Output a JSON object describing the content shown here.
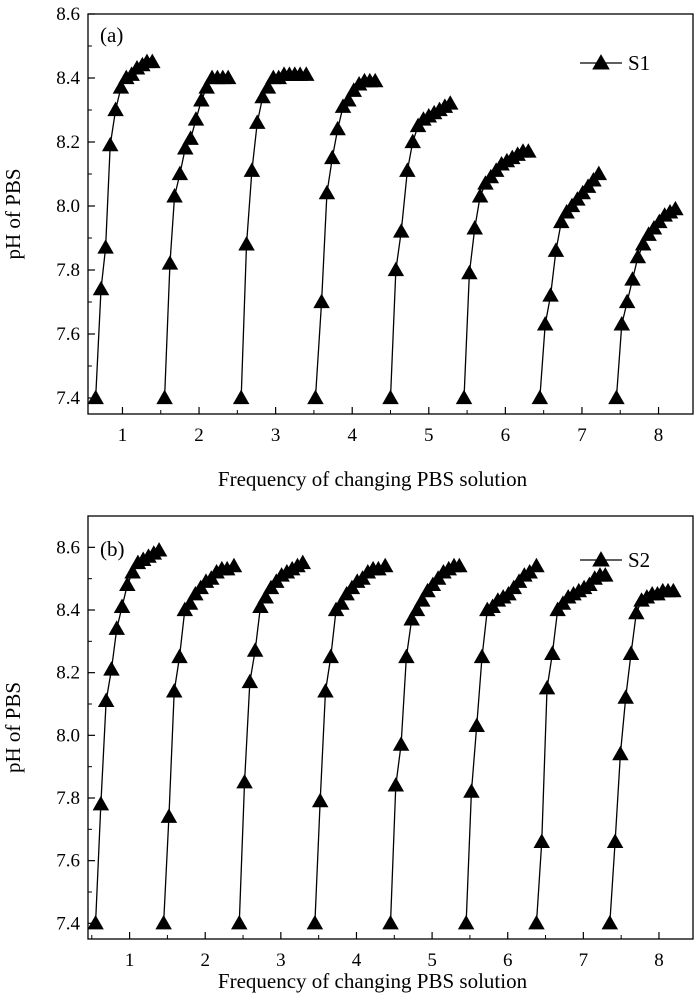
{
  "chart_data": [
    {
      "type": "line",
      "panel_label": "(a)",
      "xlabel": "Frequency of changing PBS solution",
      "ylabel": "pH of PBS",
      "xlim": [
        0.55,
        8.45
      ],
      "ylim": [
        7.35,
        8.6
      ],
      "xticks": [
        1,
        2,
        3,
        4,
        5,
        6,
        7,
        8
      ],
      "yticks": [
        "7.4",
        "7.6",
        "7.8",
        "8.0",
        "8.2",
        "8.4",
        "8.6"
      ],
      "legend": {
        "label": "S1",
        "position": "top-right",
        "marker": "triangle"
      },
      "grid": false,
      "series": [
        {
          "x": [
            0.65,
            0.72,
            0.78,
            0.84,
            0.91,
            0.98,
            1.05,
            1.12,
            1.19,
            1.26,
            1.32,
            1.39
          ],
          "y": [
            7.4,
            7.74,
            7.87,
            8.19,
            8.3,
            8.37,
            8.4,
            8.41,
            8.43,
            8.44,
            8.45,
            8.45
          ]
        },
        {
          "x": [
            1.55,
            1.62,
            1.68,
            1.75,
            1.82,
            1.89,
            1.96,
            2.03,
            2.1,
            2.17,
            2.24,
            2.31,
            2.38
          ],
          "y": [
            7.4,
            7.82,
            8.03,
            8.1,
            8.18,
            8.21,
            8.27,
            8.33,
            8.37,
            8.4,
            8.4,
            8.4,
            8.4
          ]
        },
        {
          "x": [
            2.55,
            2.62,
            2.69,
            2.76,
            2.83,
            2.9,
            2.97,
            3.04,
            3.11,
            3.18,
            3.25,
            3.32,
            3.4
          ],
          "y": [
            7.4,
            7.88,
            8.11,
            8.26,
            8.34,
            8.37,
            8.4,
            8.4,
            8.41,
            8.41,
            8.41,
            8.41,
            8.41
          ]
        },
        {
          "x": [
            3.52,
            3.6,
            3.67,
            3.74,
            3.81,
            3.88,
            3.95,
            4.02,
            4.09,
            4.16,
            4.23,
            4.3
          ],
          "y": [
            7.4,
            7.7,
            8.04,
            8.15,
            8.24,
            8.31,
            8.33,
            8.36,
            8.38,
            8.39,
            8.39,
            8.39
          ]
        },
        {
          "x": [
            4.5,
            4.57,
            4.64,
            4.72,
            4.79,
            4.86,
            4.93,
            5.0,
            5.07,
            5.14,
            5.21,
            5.28
          ],
          "y": [
            7.4,
            7.8,
            7.92,
            8.11,
            8.2,
            8.25,
            8.27,
            8.28,
            8.29,
            8.3,
            8.31,
            8.32
          ]
        },
        {
          "x": [
            5.46,
            5.53,
            5.6,
            5.67,
            5.74,
            5.81,
            5.88,
            5.95,
            6.02,
            6.09,
            6.16,
            6.23,
            6.3
          ],
          "y": [
            7.4,
            7.79,
            7.93,
            8.03,
            8.07,
            8.09,
            8.11,
            8.13,
            8.14,
            8.15,
            8.16,
            8.17,
            8.17
          ]
        },
        {
          "x": [
            6.45,
            6.52,
            6.59,
            6.66,
            6.73,
            6.8,
            6.87,
            6.94,
            7.01,
            7.08,
            7.15,
            7.22
          ],
          "y": [
            7.4,
            7.63,
            7.72,
            7.86,
            7.95,
            7.98,
            8.0,
            8.02,
            8.04,
            8.06,
            8.08,
            8.1
          ]
        },
        {
          "x": [
            7.45,
            7.52,
            7.59,
            7.66,
            7.73,
            7.8,
            7.87,
            7.94,
            8.01,
            8.08,
            8.15,
            8.22
          ],
          "y": [
            7.4,
            7.63,
            7.7,
            7.77,
            7.84,
            7.88,
            7.91,
            7.93,
            7.95,
            7.97,
            7.98,
            7.99
          ]
        }
      ]
    },
    {
      "type": "line",
      "panel_label": "(b)",
      "xlabel": "Frequency of changing PBS solution",
      "ylabel": "pH of PBS",
      "xlim": [
        0.45,
        8.45
      ],
      "ylim": [
        7.35,
        8.7
      ],
      "xticks": [
        1,
        2,
        3,
        4,
        5,
        6,
        7,
        8
      ],
      "yticks": [
        "7.4",
        "7.6",
        "7.8",
        "8.0",
        "8.2",
        "8.4",
        "8.6"
      ],
      "legend": {
        "label": "S2",
        "position": "top-right",
        "marker": "triangle"
      },
      "grid": false,
      "series": [
        {
          "x": [
            0.55,
            0.62,
            0.69,
            0.76,
            0.83,
            0.9,
            0.97,
            1.04,
            1.11,
            1.18,
            1.25,
            1.32,
            1.39
          ],
          "y": [
            7.4,
            7.78,
            8.11,
            8.21,
            8.34,
            8.41,
            8.48,
            8.52,
            8.55,
            8.56,
            8.57,
            8.58,
            8.59
          ]
        },
        {
          "x": [
            1.45,
            1.52,
            1.59,
            1.66,
            1.73,
            1.8,
            1.87,
            1.94,
            2.01,
            2.08,
            2.15,
            2.22,
            2.29,
            2.38
          ],
          "y": [
            7.4,
            7.74,
            8.14,
            8.25,
            8.4,
            8.42,
            8.45,
            8.47,
            8.49,
            8.5,
            8.52,
            8.53,
            8.53,
            8.54
          ]
        },
        {
          "x": [
            2.45,
            2.52,
            2.59,
            2.66,
            2.73,
            2.8,
            2.87,
            2.94,
            3.01,
            3.08,
            3.15,
            3.22,
            3.29
          ],
          "y": [
            7.4,
            7.85,
            8.17,
            8.27,
            8.41,
            8.44,
            8.47,
            8.49,
            8.51,
            8.52,
            8.53,
            8.54,
            8.55
          ]
        },
        {
          "x": [
            3.45,
            3.52,
            3.59,
            3.66,
            3.73,
            3.8,
            3.87,
            3.94,
            4.01,
            4.08,
            4.15,
            4.22,
            4.29,
            4.38
          ],
          "y": [
            7.4,
            7.79,
            8.14,
            8.25,
            8.4,
            8.42,
            8.45,
            8.47,
            8.49,
            8.5,
            8.52,
            8.53,
            8.53,
            8.54
          ]
        },
        {
          "x": [
            4.45,
            4.52,
            4.59,
            4.66,
            4.73,
            4.8,
            4.87,
            4.94,
            5.01,
            5.08,
            5.15,
            5.22,
            5.29,
            5.36
          ],
          "y": [
            7.4,
            7.84,
            7.97,
            8.25,
            8.37,
            8.4,
            8.43,
            8.46,
            8.48,
            8.5,
            8.52,
            8.53,
            8.54,
            8.54
          ]
        },
        {
          "x": [
            5.45,
            5.52,
            5.59,
            5.66,
            5.73,
            5.8,
            5.87,
            5.94,
            6.01,
            6.08,
            6.15,
            6.22,
            6.29,
            6.38
          ],
          "y": [
            7.4,
            7.82,
            8.03,
            8.25,
            8.4,
            8.41,
            8.43,
            8.44,
            8.45,
            8.47,
            8.49,
            8.51,
            8.52,
            8.54
          ]
        },
        {
          "x": [
            6.38,
            6.45,
            6.52,
            6.59,
            6.66,
            6.73,
            6.8,
            6.87,
            6.94,
            7.01,
            7.08,
            7.15,
            7.22,
            7.29
          ],
          "y": [
            7.4,
            7.66,
            8.15,
            8.26,
            8.4,
            8.42,
            8.44,
            8.45,
            8.46,
            8.47,
            8.48,
            8.5,
            8.51,
            8.51
          ]
        },
        {
          "x": [
            7.35,
            7.42,
            7.49,
            7.56,
            7.63,
            7.7,
            7.77,
            7.84,
            7.91,
            7.98,
            8.05,
            8.12,
            8.19
          ],
          "y": [
            7.4,
            7.66,
            7.94,
            8.12,
            8.26,
            8.39,
            8.43,
            8.44,
            8.45,
            8.45,
            8.46,
            8.46,
            8.46
          ]
        }
      ]
    }
  ]
}
